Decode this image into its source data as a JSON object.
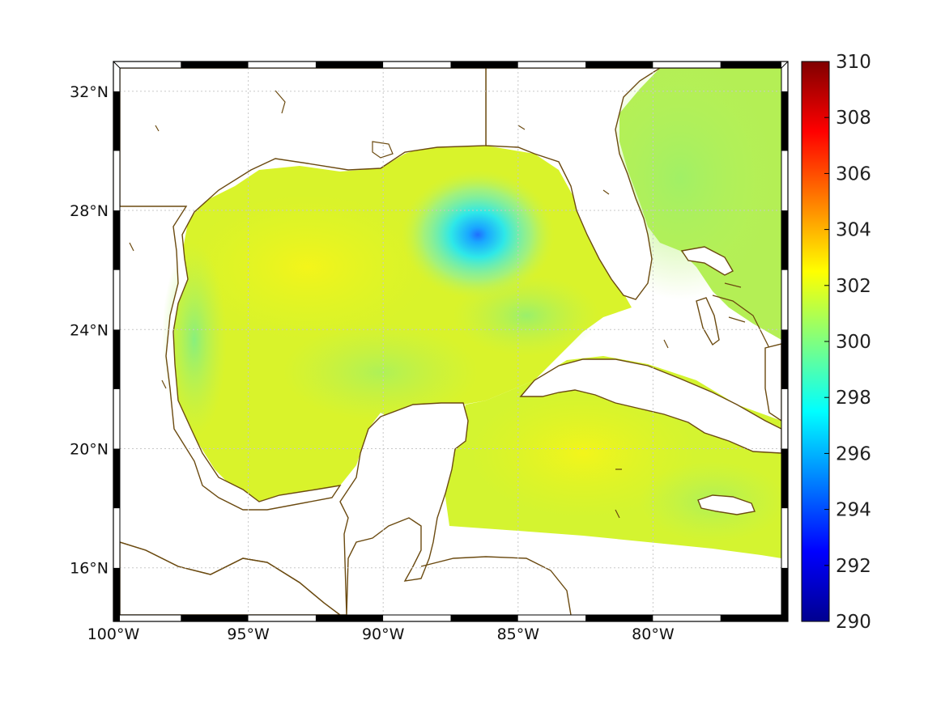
{
  "map": {
    "region": "Gulf of Mexico and western Caribbean",
    "lon_range": [
      -100,
      -75
    ],
    "lat_range": [
      14.2,
      33
    ],
    "lon_ticks": [
      {
        "value": -100,
        "label": "100°W"
      },
      {
        "value": -95,
        "label": "95°W"
      },
      {
        "value": -90,
        "label": "90°W"
      },
      {
        "value": -85,
        "label": "85°W"
      },
      {
        "value": -80,
        "label": "80°W"
      }
    ],
    "lat_ticks": [
      {
        "value": 32,
        "label": "32°N"
      },
      {
        "value": 28,
        "label": "28°N"
      },
      {
        "value": 24,
        "label": "24°N"
      },
      {
        "value": 20,
        "label": "20°N"
      },
      {
        "value": 16,
        "label": "16°N"
      }
    ],
    "grid": "dotted",
    "frame": "black-white checkered",
    "coastline_color": "#6b4a10"
  },
  "colorbar": {
    "min": 290,
    "max": 310,
    "colormap": "jet",
    "ticks": [
      "310",
      "308",
      "306",
      "304",
      "302",
      "300",
      "298",
      "296",
      "294",
      "292",
      "290"
    ]
  },
  "field": {
    "typical_value": 301.5,
    "cool_spot": {
      "lon": -86.3,
      "lat": 26.5,
      "value": 295
    }
  },
  "colors": {
    "coast": "#6b4a10",
    "land": "#ffffff",
    "field_main": "#d6f52a",
    "field_warm": "#f2f519",
    "field_cool": "#2ee8df",
    "field_cold": "#1f7dff"
  }
}
